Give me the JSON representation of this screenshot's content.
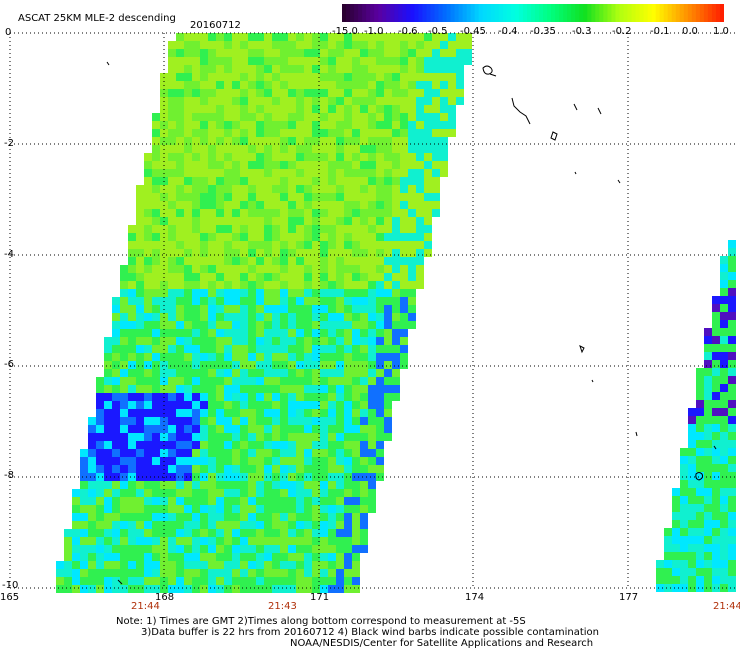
{
  "header": {
    "title": "ASCAT 25KM MLE-2 descending",
    "date": "20160712"
  },
  "colorbar": {
    "labels": [
      "-15.0",
      "-1.0",
      "-0.6",
      "-0.5",
      "-0.45",
      "-0.4",
      "-0.35",
      "-0.3",
      "-0.2",
      "-0.1",
      "0.0",
      "1.0"
    ],
    "colors": [
      "#2a0030",
      "#5a00a0",
      "#1a10ff",
      "#0070ff",
      "#00d8ff",
      "#00ffe0",
      "#00ff80",
      "#10e020",
      "#b0ff10",
      "#ffff00",
      "#ff9000",
      "#ff2000"
    ]
  },
  "axes": {
    "lat_labels": [
      "0",
      "-2",
      "-4",
      "-6",
      "-8",
      "-10"
    ],
    "lon_labels": [
      "165",
      "168",
      "171",
      "174",
      "177"
    ]
  },
  "times": [
    "21:44",
    "21:43",
    "21:44"
  ],
  "notes": {
    "line1": "Note: 1) Times are GMT 2)Times along bottom correspond to measurement at -5S",
    "line2": "3)Data buffer is 22 hrs from 20160712 4) Black wind barbs indicate possible contamination",
    "line3": "NOAA/NESDIS/Center for Satellite Applications and Research"
  }
}
